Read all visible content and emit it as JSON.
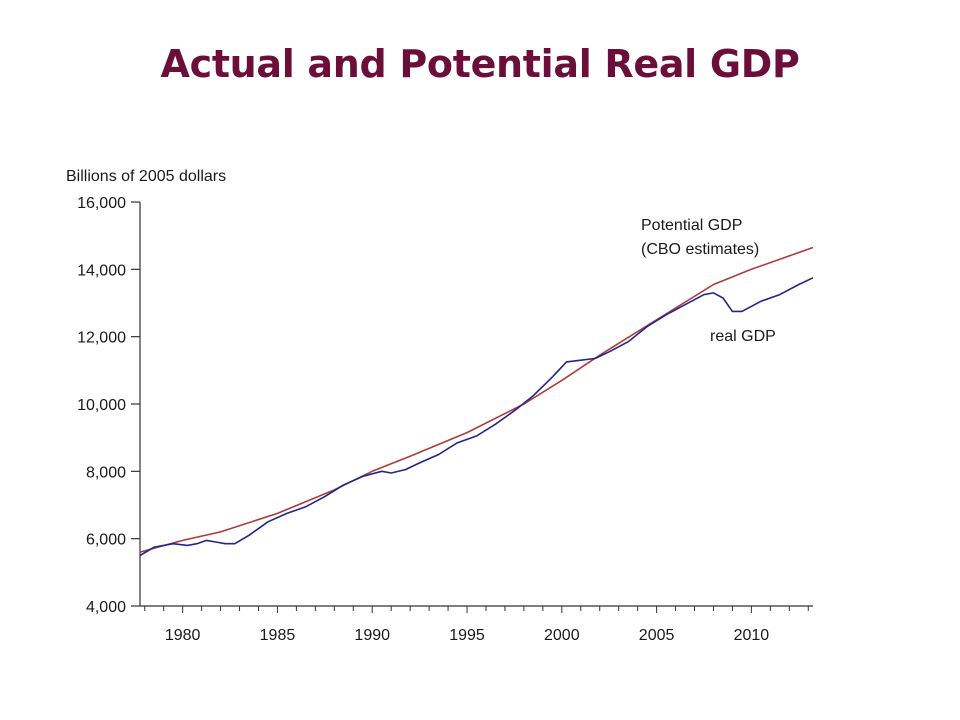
{
  "slide": {
    "title": "Actual and Potential Real GDP"
  },
  "chart_data": {
    "type": "line",
    "ylabel": "Billions of 2005 dollars",
    "xlabel": "",
    "ylim": [
      4000,
      16000
    ],
    "xlim": [
      1977.75,
      2013.25
    ],
    "grid": false,
    "y_ticks": [
      {
        "value": 4000,
        "label": "4,000"
      },
      {
        "value": 6000,
        "label": "6,000"
      },
      {
        "value": 8000,
        "label": "8,000"
      },
      {
        "value": 10000,
        "label": "10,000"
      },
      {
        "value": 12000,
        "label": "12,000"
      },
      {
        "value": 14000,
        "label": "14,000"
      },
      {
        "value": 16000,
        "label": "16,000"
      }
    ],
    "x_ticks": [
      {
        "value": 1980,
        "label": "1980"
      },
      {
        "value": 1985,
        "label": "1985"
      },
      {
        "value": 1990,
        "label": "1990"
      },
      {
        "value": 1995,
        "label": "1995"
      },
      {
        "value": 2000,
        "label": "2000"
      },
      {
        "value": 2005,
        "label": "2005"
      },
      {
        "value": 2010,
        "label": "2010"
      }
    ],
    "series": [
      {
        "name": "Potential GDP",
        "label_lines": [
          "Potential GDP",
          "(CBO estimates)"
        ],
        "color": "#b03a3a",
        "points": [
          [
            1977.75,
            5600
          ],
          [
            1980,
            5950
          ],
          [
            1982,
            6200
          ],
          [
            1985,
            6750
          ],
          [
            1988,
            7450
          ],
          [
            1990,
            8000
          ],
          [
            1992,
            8450
          ],
          [
            1995,
            9150
          ],
          [
            1998,
            10000
          ],
          [
            2000,
            10700
          ],
          [
            2002,
            11450
          ],
          [
            2005,
            12500
          ],
          [
            2008,
            13550
          ],
          [
            2010,
            14000
          ],
          [
            2013.25,
            14650
          ]
        ]
      },
      {
        "name": "real GDP",
        "label_lines": [
          "real GDP"
        ],
        "color": "#22268a",
        "points": [
          [
            1977.75,
            5500
          ],
          [
            1978.5,
            5750
          ],
          [
            1979.5,
            5850
          ],
          [
            1980.25,
            5800
          ],
          [
            1980.75,
            5850
          ],
          [
            1981.25,
            5950
          ],
          [
            1981.75,
            5900
          ],
          [
            1982.25,
            5850
          ],
          [
            1982.75,
            5850
          ],
          [
            1983.5,
            6100
          ],
          [
            1984.5,
            6500
          ],
          [
            1985.5,
            6750
          ],
          [
            1986.5,
            6950
          ],
          [
            1987.5,
            7250
          ],
          [
            1988.5,
            7600
          ],
          [
            1989.5,
            7850
          ],
          [
            1990.5,
            8000
          ],
          [
            1991,
            7950
          ],
          [
            1991.75,
            8050
          ],
          [
            1992.5,
            8250
          ],
          [
            1993.5,
            8500
          ],
          [
            1994.5,
            8850
          ],
          [
            1995.5,
            9050
          ],
          [
            1996.5,
            9400
          ],
          [
            1997.5,
            9800
          ],
          [
            1998.5,
            10250
          ],
          [
            1999.5,
            10800
          ],
          [
            2000.25,
            11250
          ],
          [
            2001,
            11300
          ],
          [
            2001.75,
            11350
          ],
          [
            2002.5,
            11550
          ],
          [
            2003.5,
            11850
          ],
          [
            2004.5,
            12300
          ],
          [
            2005.5,
            12650
          ],
          [
            2006.5,
            12950
          ],
          [
            2007.5,
            13250
          ],
          [
            2008,
            13300
          ],
          [
            2008.5,
            13150
          ],
          [
            2009,
            12750
          ],
          [
            2009.5,
            12750
          ],
          [
            2010.5,
            13050
          ],
          [
            2011.5,
            13250
          ],
          [
            2012.5,
            13550
          ],
          [
            2013.25,
            13750
          ]
        ]
      }
    ]
  }
}
